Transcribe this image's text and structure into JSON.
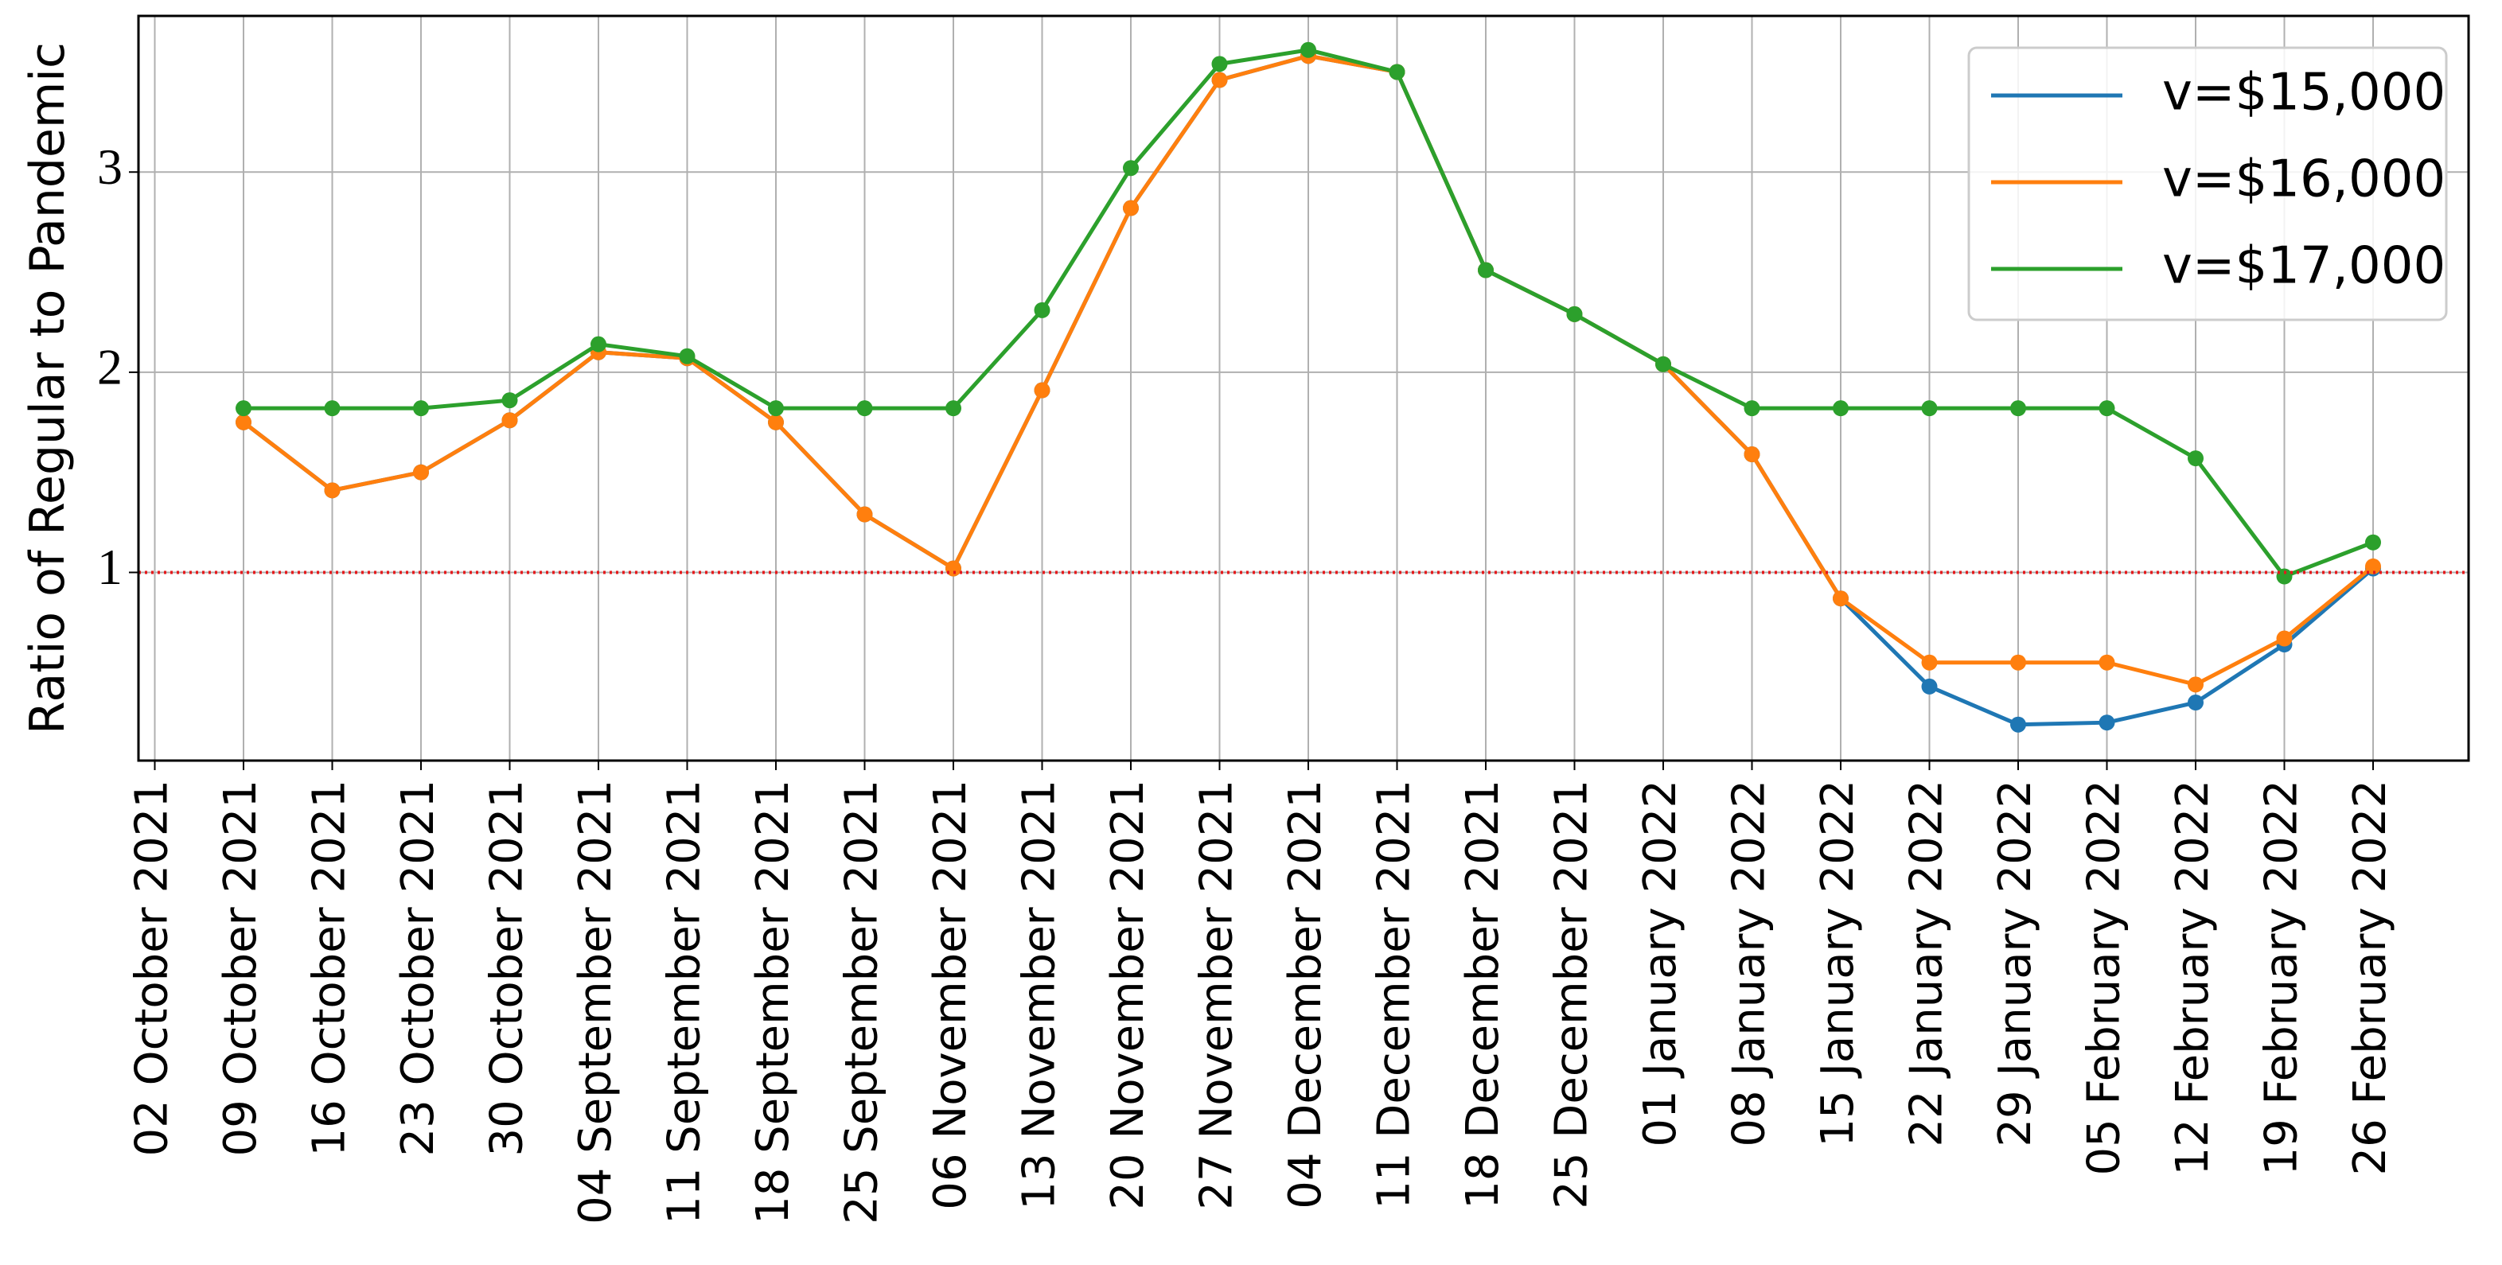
{
  "chart_data": {
    "type": "line",
    "y_label": "Ratio of Regular to Pandemic",
    "categories": [
      "02 October 2021",
      "09 October 2021",
      "16 October 2021",
      "23 October 2021",
      "30 October 2021",
      "04 September 2021",
      "11 September 2021",
      "18 September 2021",
      "25 September 2021",
      "06 November 2021",
      "13 November 2021",
      "20 November 2021",
      "27 November 2021",
      "04 December 2021",
      "11 December 2021",
      "18 December 2021",
      "25 December 2021",
      "01 January 2022",
      "08 January 2022",
      "15 January 2022",
      "22 January 2022",
      "29 January 2022",
      "05 February 2022",
      "12 February 2022",
      "19 February 2022",
      "26 February 2022"
    ],
    "series": [
      {
        "name": "v=$15,000",
        "color": "#1f77b4",
        "values": [
          null,
          1.75,
          1.41,
          1.5,
          1.76,
          2.1,
          2.07,
          1.75,
          1.29,
          1.02,
          1.91,
          2.82,
          3.46,
          3.58,
          3.5,
          2.51,
          2.29,
          2.04,
          1.59,
          0.87,
          0.43,
          0.24,
          0.25,
          0.35,
          0.64,
          1.02
        ]
      },
      {
        "name": "v=$16,000",
        "color": "#ff7f0e",
        "values": [
          null,
          1.75,
          1.41,
          1.5,
          1.76,
          2.1,
          2.07,
          1.75,
          1.29,
          1.02,
          1.91,
          2.82,
          3.46,
          3.58,
          3.5,
          2.51,
          2.29,
          2.04,
          1.59,
          0.87,
          0.55,
          0.55,
          0.55,
          0.44,
          0.67,
          1.03
        ]
      },
      {
        "name": "v=$17,000",
        "color": "#2ca02c",
        "values": [
          null,
          1.82,
          1.82,
          1.82,
          1.86,
          2.14,
          2.08,
          1.82,
          1.82,
          1.82,
          2.31,
          3.02,
          3.54,
          3.61,
          3.5,
          2.51,
          2.29,
          2.04,
          1.82,
          1.82,
          1.82,
          1.82,
          1.82,
          1.57,
          0.98,
          1.15
        ]
      }
    ],
    "ylim": [
      0.06,
      3.78
    ],
    "yticks": [
      1,
      2,
      3
    ],
    "grid": true,
    "hline": 1,
    "hline_color": "#e41a1c",
    "legend": "upper right"
  }
}
